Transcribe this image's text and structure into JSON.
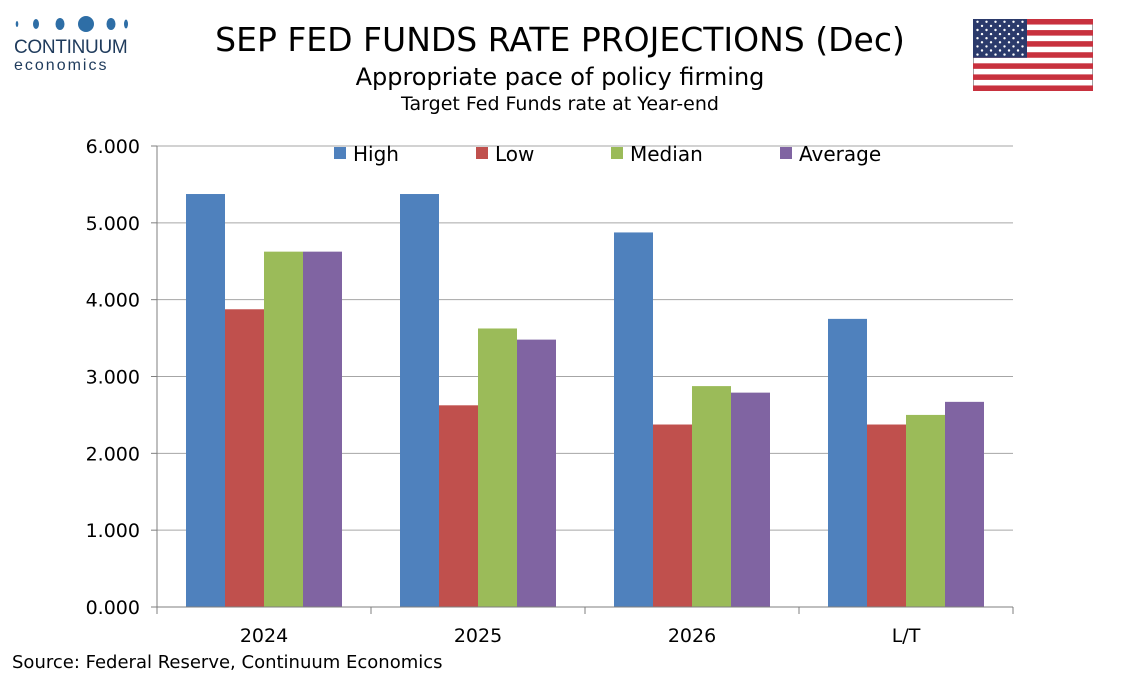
{
  "logo": {
    "line1": "CONTINUUM",
    "line2": "economics"
  },
  "header": {
    "title": "SEP FED FUNDS RATE PROJECTIONS (Dec)",
    "subtitle": "Appropriate pace of policy firming",
    "subsubtitle": "Target Fed Funds rate at Year-end"
  },
  "footer": {
    "source": "Source: Federal Reserve, Continuum Economics"
  },
  "flag_icon": "us-flag-icon",
  "chart_data": {
    "type": "bar",
    "categories": [
      "2024",
      "2025",
      "2026",
      "L/T"
    ],
    "series": [
      {
        "name": "High",
        "color": "#4f81bd",
        "values": [
          5.375,
          5.375,
          4.875,
          3.75
        ]
      },
      {
        "name": "Low",
        "color": "#c0504d",
        "values": [
          3.875,
          2.625,
          2.375,
          2.375
        ]
      },
      {
        "name": "Median",
        "color": "#9bbb59",
        "values": [
          4.625,
          3.625,
          2.875,
          2.5
        ]
      },
      {
        "name": "Average",
        "color": "#8064a2",
        "values": [
          4.625,
          3.48,
          2.79,
          2.67
        ]
      }
    ],
    "ylim": [
      0,
      6
    ],
    "yticks": [
      "0.000",
      "1.000",
      "2.000",
      "3.000",
      "4.000",
      "5.000",
      "6.000"
    ],
    "ytick_values": [
      0,
      1,
      2,
      3,
      4,
      5,
      6
    ],
    "grid": true,
    "legend": "top"
  }
}
